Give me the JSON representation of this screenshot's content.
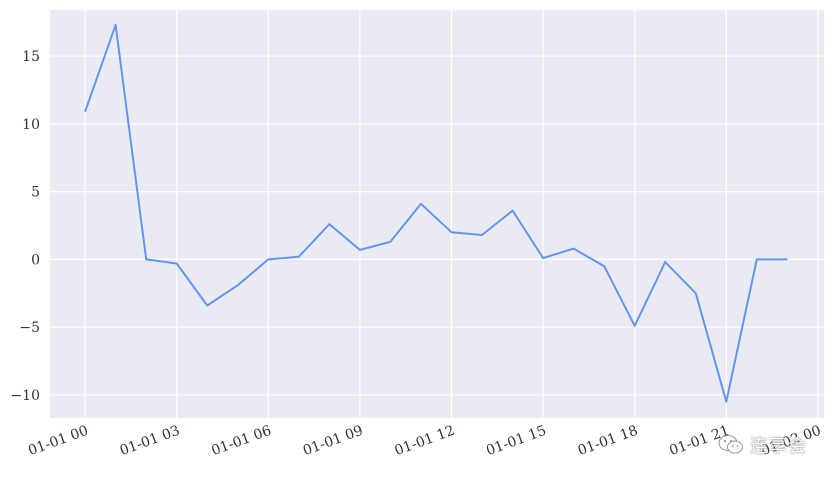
{
  "chart_data": {
    "type": "line",
    "x": [
      "01-01 00",
      "01-01 01",
      "01-01 02",
      "01-01 03",
      "01-01 04",
      "01-01 05",
      "01-01 06",
      "01-01 07",
      "01-01 08",
      "01-01 09",
      "01-01 10",
      "01-01 11",
      "01-01 12",
      "01-01 13",
      "01-01 14",
      "01-01 15",
      "01-01 16",
      "01-01 17",
      "01-01 18",
      "01-01 19",
      "01-01 20",
      "01-01 21",
      "01-01 22",
      "01-01 23"
    ],
    "series": [
      {
        "values": [
          10.9,
          17.3,
          0.0,
          -0.3,
          -3.4,
          -1.9,
          0.0,
          0.2,
          2.6,
          0.7,
          1.3,
          4.1,
          2.0,
          1.8,
          3.6,
          0.1,
          0.8,
          -0.5,
          -4.9,
          -0.2,
          -2.5,
          -10.5,
          0.0,
          0.0
        ],
        "color": "#6495ed"
      }
    ],
    "xtick_labels": [
      "01-01 00",
      "01-01 03",
      "01-01 06",
      "01-01 09",
      "01-01 12",
      "01-01 15",
      "01-01 18",
      "01-01 21",
      "01-02 00"
    ],
    "ytick_labels": [
      "15",
      "10",
      "5",
      "0",
      "−5",
      "−10"
    ],
    "yticks": [
      15,
      10,
      5,
      0,
      -5,
      -10
    ],
    "ylim": [
      -11.7,
      18.4
    ],
    "xlim_hours": [
      -1.15,
      24.2
    ],
    "grid": true,
    "background": "#eaeaf2",
    "title": "",
    "xlabel": "",
    "ylabel": ""
  },
  "watermark": {
    "text": "连享会",
    "icon": "wechat-icon"
  }
}
